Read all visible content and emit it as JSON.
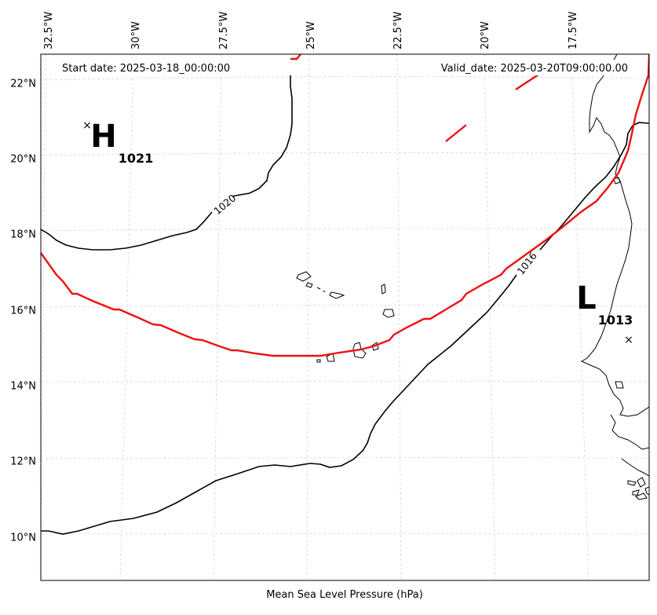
{
  "map": {
    "start_label": "Start date: 2025-03-18_00:00:00",
    "valid_label": "Valid_date: 2025-03-20T09:00:00.00",
    "x_axis_title": "Mean Sea Level Pressure (hPa)",
    "lon_ticks": [
      "32.5°W",
      "30°W",
      "27.5°W",
      "25°W",
      "22.5°W",
      "20°W",
      "17.5°W"
    ],
    "lat_ticks": [
      "22°N",
      "20°N",
      "18°N",
      "16°N",
      "14°N",
      "12°N",
      "10°N"
    ],
    "high": {
      "letter": "H",
      "value": "1021",
      "marker": "×"
    },
    "low": {
      "letter": "L",
      "value": "1013",
      "marker": "×"
    },
    "isobar_labels": [
      "1020",
      "1016"
    ],
    "colors": {
      "isobar": "#000000",
      "highlight": "#ee1111",
      "grid": "#d4d4d4"
    }
  }
}
